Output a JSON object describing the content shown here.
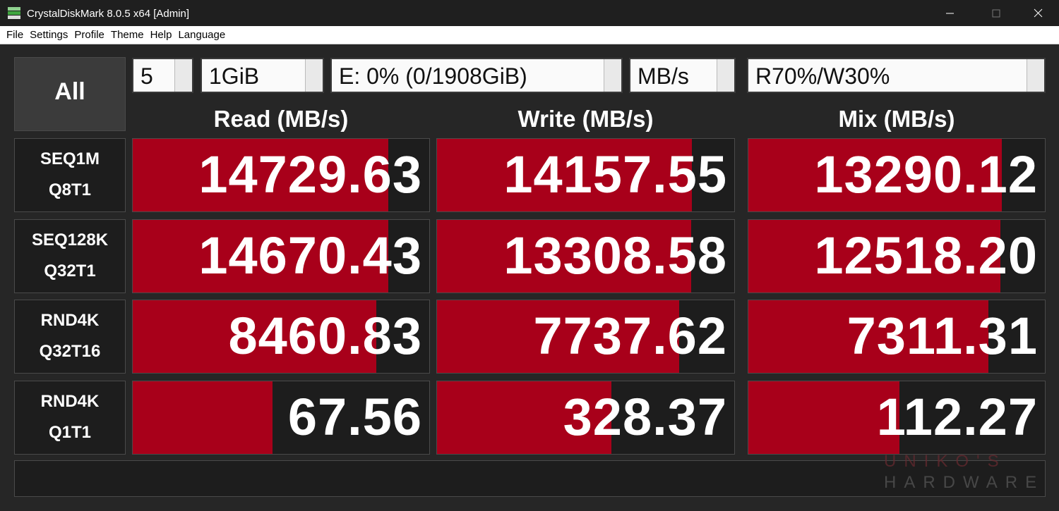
{
  "window": {
    "title": "CrystalDiskMark 8.0.5 x64 [Admin]"
  },
  "menu": [
    "File",
    "Settings",
    "Profile",
    "Theme",
    "Help",
    "Language"
  ],
  "controls": {
    "button": "All",
    "count": "5",
    "size": "1GiB",
    "drive": "E: 0% (0/1908GiB)",
    "unit": "MB/s",
    "mix": "R70%/W30%"
  },
  "columns": [
    "Read (MB/s)",
    "Write (MB/s)",
    "Mix (MB/s)"
  ],
  "rows": [
    {
      "test": [
        "SEQ1M",
        "Q8T1"
      ],
      "results": [
        "14729.63",
        "14157.55",
        "13290.12"
      ]
    },
    {
      "test": [
        "SEQ128K",
        "Q32T1"
      ],
      "results": [
        "14670.43",
        "13308.58",
        "12518.20"
      ]
    },
    {
      "test": [
        "RND4K",
        "Q32T16"
      ],
      "results": [
        "8460.83",
        "7737.62",
        "7311.31"
      ]
    },
    {
      "test": [
        "RND4K",
        "Q1T1"
      ],
      "results": [
        "67.56",
        "328.37",
        "112.27"
      ]
    }
  ],
  "watermark": [
    "UNIKO'S",
    "HARDWARE"
  ]
}
